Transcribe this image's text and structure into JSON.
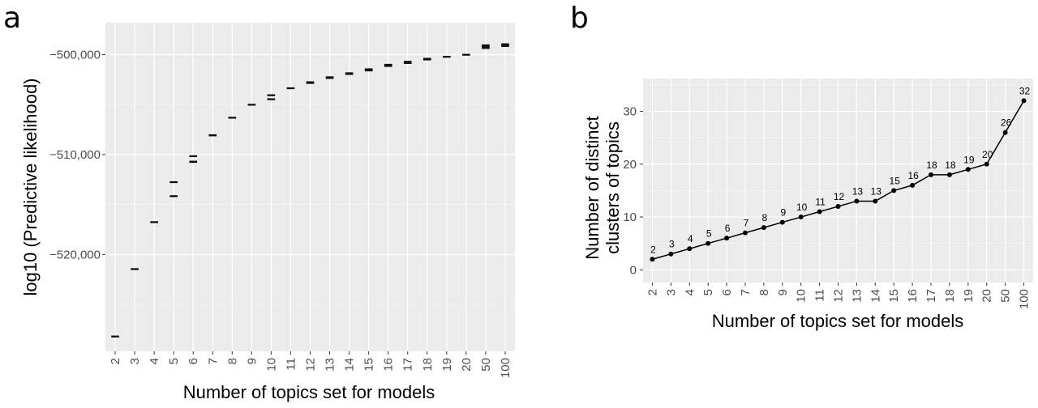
{
  "panels": {
    "a": {
      "letter": "a"
    },
    "b": {
      "letter": "b"
    }
  },
  "chart_data": [
    {
      "type": "boxplot",
      "panel": "a",
      "title": "",
      "xlabel": "Number of topics set for models",
      "ylabel": "log10 (Predictive likelihood)",
      "categories": [
        "2",
        "3",
        "4",
        "5",
        "6",
        "7",
        "8",
        "9",
        "10",
        "11",
        "12",
        "13",
        "14",
        "15",
        "16",
        "17",
        "18",
        "19",
        "20",
        "50",
        "100"
      ],
      "y_ticks": [
        -520000,
        -510000,
        -500000
      ],
      "y_tick_labels": [
        "−520,000",
        "−510,000",
        "−500,000"
      ],
      "ylim": [
        -529700,
        -496800
      ],
      "grid": true,
      "boxes": [
        {
          "cat": "2",
          "low": -528250,
          "high": -528150
        },
        {
          "cat": "3",
          "low": -521500,
          "high": -521400
        },
        {
          "cat": "4",
          "low": -516800,
          "high": -516700
        },
        {
          "cat": "5",
          "low": -512800,
          "high": -512700
        },
        {
          "cat": "5",
          "low": -514200,
          "high": -514100
        },
        {
          "cat": "6",
          "low": -510200,
          "high": -510100
        },
        {
          "cat": "6",
          "low": -510800,
          "high": -510650
        },
        {
          "cat": "7",
          "low": -508150,
          "high": -508000
        },
        {
          "cat": "8",
          "low": -506350,
          "high": -506250
        },
        {
          "cat": "9",
          "low": -505050,
          "high": -504950
        },
        {
          "cat": "10",
          "low": -504100,
          "high": -504000
        },
        {
          "cat": "10",
          "low": -504500,
          "high": -504400
        },
        {
          "cat": "11",
          "low": -503400,
          "high": -503300
        },
        {
          "cat": "12",
          "low": -502900,
          "high": -502700
        },
        {
          "cat": "13",
          "low": -502400,
          "high": -502200
        },
        {
          "cat": "14",
          "low": -502000,
          "high": -501800
        },
        {
          "cat": "15",
          "low": -501650,
          "high": -501400
        },
        {
          "cat": "16",
          "low": -501200,
          "high": -500950
        },
        {
          "cat": "17",
          "low": -500900,
          "high": -500650
        },
        {
          "cat": "18",
          "low": -500550,
          "high": -500350
        },
        {
          "cat": "19",
          "low": -500250,
          "high": -500150
        },
        {
          "cat": "20",
          "low": -500050,
          "high": -499950
        },
        {
          "cat": "50",
          "low": -499400,
          "high": -499000
        },
        {
          "cat": "100",
          "low": -499200,
          "high": -498900
        }
      ]
    },
    {
      "type": "line",
      "panel": "b",
      "title": "",
      "xlabel": "Number of topics set for models",
      "ylabel_lines": [
        "Number of distinct",
        "clusters of topics"
      ],
      "categories": [
        "2",
        "3",
        "4",
        "5",
        "6",
        "7",
        "8",
        "9",
        "10",
        "11",
        "12",
        "13",
        "14",
        "15",
        "16",
        "17",
        "18",
        "19",
        "20",
        "50",
        "100"
      ],
      "values": [
        2,
        3,
        4,
        5,
        6,
        7,
        8,
        9,
        10,
        11,
        12,
        13,
        13,
        15,
        16,
        18,
        18,
        19,
        20,
        26,
        32
      ],
      "y_ticks": [
        0,
        10,
        20,
        30
      ],
      "ylim": [
        -2.4,
        36.2
      ],
      "grid": true
    }
  ]
}
